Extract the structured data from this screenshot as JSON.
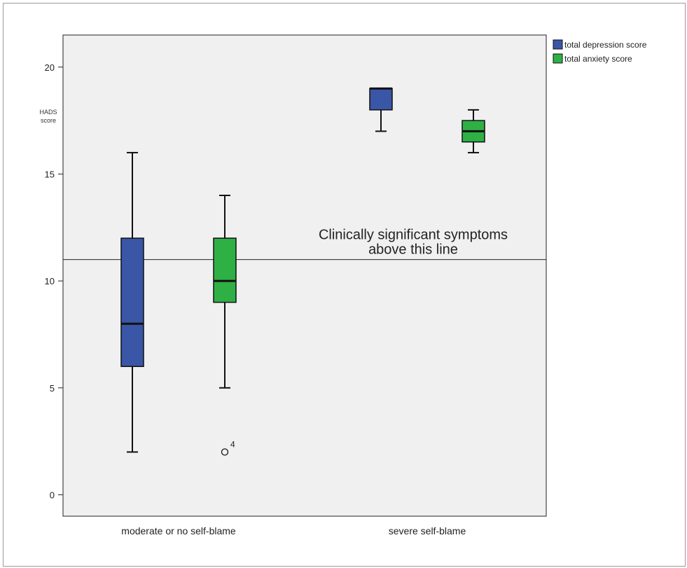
{
  "chart_data": {
    "type": "boxplot",
    "ylabel": [
      "HADS",
      "score"
    ],
    "xlabel": "",
    "ylim": [
      -1,
      21.5
    ],
    "yticks": [
      0,
      5,
      10,
      15,
      20
    ],
    "grid": false,
    "legend_position": "top-right",
    "categories": [
      "moderate or no self-blame",
      "severe self-blame"
    ],
    "series": [
      {
        "name": "total depression score",
        "color": "#3a56a6",
        "boxes": [
          {
            "min": 2,
            "q1": 6,
            "median": 8,
            "q3": 12,
            "max": 16,
            "outliers": []
          },
          {
            "min": 17,
            "q1": 18,
            "median": 19,
            "q3": 19,
            "max": 19,
            "outliers": []
          }
        ]
      },
      {
        "name": "total anxiety score",
        "color": "#2fb045",
        "boxes": [
          {
            "min": 5,
            "q1": 9,
            "median": 10,
            "q3": 12,
            "max": 14,
            "outliers": [
              {
                "value": 2,
                "label": "4"
              }
            ]
          },
          {
            "min": 16,
            "q1": 16.5,
            "median": 17,
            "q3": 17.5,
            "max": 18,
            "outliers": []
          }
        ]
      }
    ],
    "reference_line": {
      "y": 11,
      "label_lines": [
        "Clinically significant symptoms",
        "above this line"
      ]
    }
  }
}
